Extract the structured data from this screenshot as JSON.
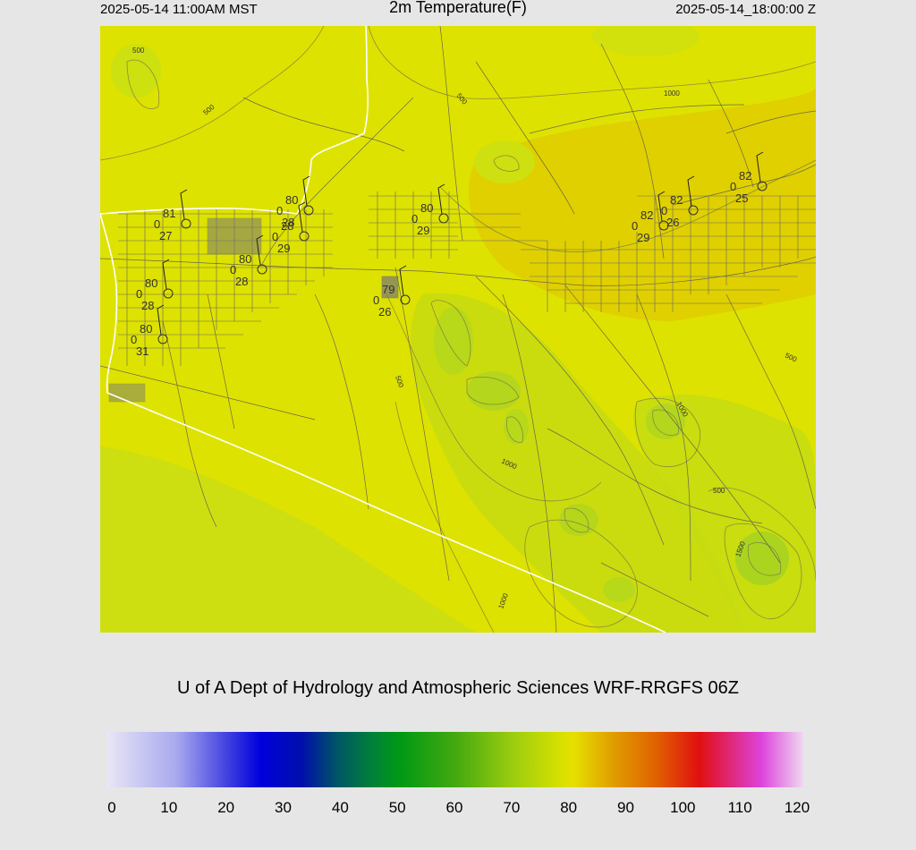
{
  "header": {
    "local_time": "2025-05-14 11:00AM MST",
    "title": "2m Temperature(F)",
    "valid_time": "2025-05-14_18:00:00 Z"
  },
  "credit": "U of A Dept of Hydrology and Atmospheric Sciences WRF-RRGFS 06Z",
  "colorbar": {
    "ticks": [
      "0",
      "10",
      "20",
      "30",
      "40",
      "50",
      "60",
      "70",
      "80",
      "90",
      "100",
      "110",
      "120"
    ],
    "range": [
      0,
      120
    ]
  },
  "map": {
    "field_colors": {
      "warm": "#e0c800",
      "main": "#dee200",
      "cool": "#c4de0e",
      "coolest": "#a8d61a"
    },
    "contour_labels": [
      "500",
      "500",
      "1000",
      "500",
      "500",
      "1000",
      "1000",
      "500",
      "1000",
      "1500",
      "500"
    ],
    "stations": [
      {
        "temp": "81",
        "dew": "27",
        "press": "0"
      },
      {
        "temp": "80",
        "dew": "28",
        "press": "0"
      },
      {
        "temp": "28",
        "dew": "29",
        "press": "0"
      },
      {
        "temp": "80",
        "dew": "28",
        "press": "0"
      },
      {
        "temp": "80",
        "dew": "28",
        "press": "0"
      },
      {
        "temp": "80",
        "dew": "31",
        "press": "0"
      },
      {
        "temp": "79",
        "dew": "26",
        "press": "0"
      },
      {
        "temp": "80",
        "dew": "29",
        "press": "0"
      },
      {
        "temp": "82",
        "dew": "29",
        "press": "0"
      },
      {
        "temp": "82",
        "dew": "26",
        "press": "0"
      },
      {
        "temp": "82",
        "dew": "25",
        "press": "0"
      }
    ]
  }
}
